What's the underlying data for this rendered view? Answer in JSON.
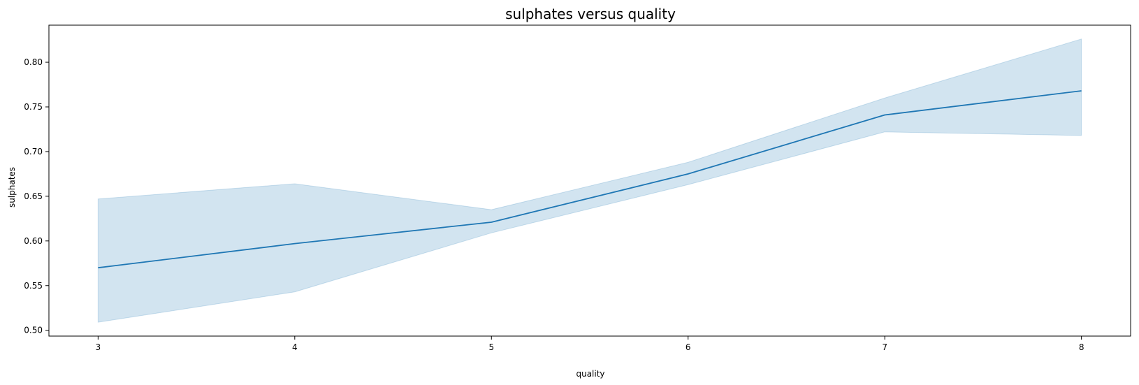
{
  "chart_data": {
    "type": "line",
    "title": "sulphates versus quality",
    "xlabel": "quality",
    "ylabel": "sulphates",
    "x": [
      3,
      4,
      5,
      6,
      7,
      8
    ],
    "series": [
      {
        "values": [
          0.57,
          0.597,
          0.621,
          0.675,
          0.741,
          0.768
        ],
        "ci_upper": [
          0.647,
          0.664,
          0.635,
          0.688,
          0.76,
          0.826
        ],
        "ci_lower": [
          0.509,
          0.543,
          0.609,
          0.663,
          0.722,
          0.718
        ],
        "color": "#1f77b4"
      }
    ],
    "x_ticks": [
      "3",
      "4",
      "5",
      "6",
      "7",
      "8"
    ],
    "y_ticks": [
      "0.50",
      "0.55",
      "0.60",
      "0.65",
      "0.70",
      "0.75",
      "0.80"
    ],
    "xlim": [
      2.75,
      8.25
    ],
    "ylim": [
      0.4935,
      0.8415
    ],
    "grid": false,
    "band_color": "#1f77b4"
  }
}
